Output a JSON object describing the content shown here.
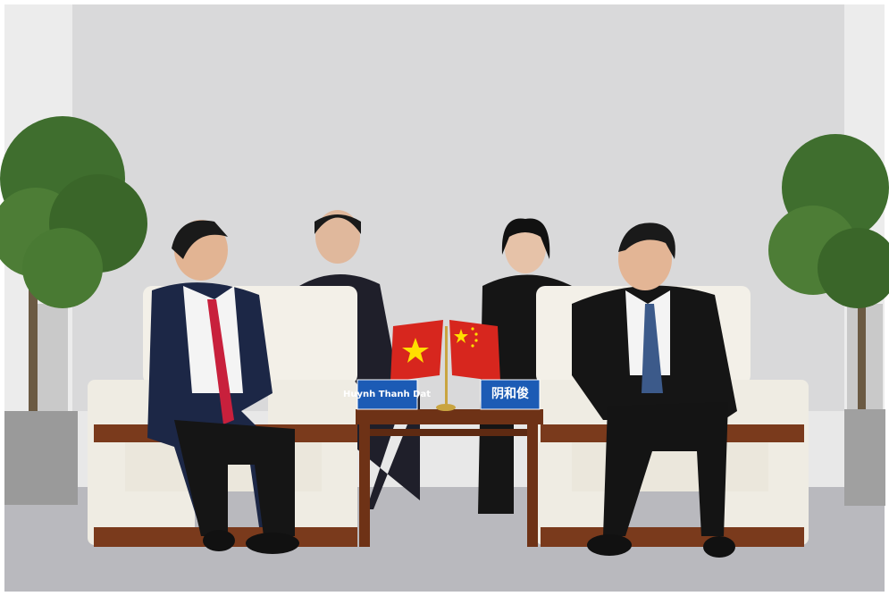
{
  "nameplates": [
    {
      "text": "Huynh Thanh Dat"
    },
    {
      "text": "阴和俊"
    }
  ]
}
